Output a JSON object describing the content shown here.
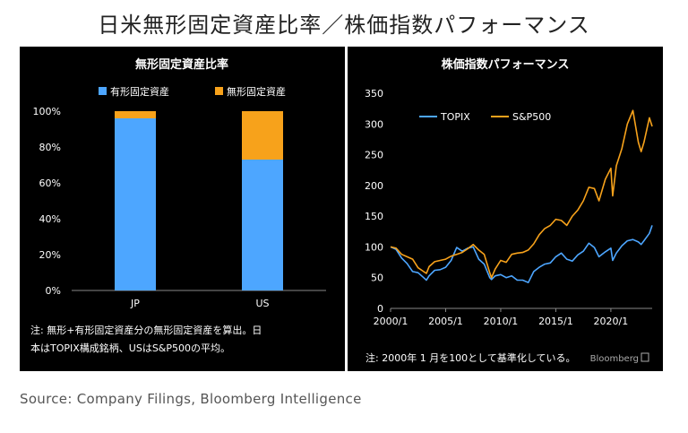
{
  "title": "日米無形固定資産比率／株価指数パフォーマンス",
  "source": "Source: Company Filings, Bloomberg Intelligence",
  "brand": "Bloomberg",
  "colors": {
    "blue": "#4da6ff",
    "orange": "#f7a21b",
    "background": "#000000",
    "text": "#ffffff"
  },
  "chart_data": [
    {
      "type": "bar",
      "stacked": true,
      "title": "無形固定資産比率",
      "categories": [
        "JP",
        "US"
      ],
      "series": [
        {
          "name": "有形固定資産",
          "values": [
            96,
            73
          ]
        },
        {
          "name": "無形固定資産",
          "values": [
            4,
            27
          ]
        }
      ],
      "ylim": [
        0,
        100
      ],
      "yticks": [
        "0%",
        "20%",
        "40%",
        "60%",
        "80%",
        "100%"
      ],
      "legend": "top",
      "note": "注: 無形+有形固定資産分の無形固定資産を算出。日本はTOPIX構成銘柄、USはS&P500の平均。"
    },
    {
      "type": "line",
      "title": "株価指数パフォーマンス",
      "x": [
        "2000/1",
        "2000/7",
        "2001/1",
        "2001/7",
        "2002/1",
        "2002/7",
        "2003/1",
        "2003/4",
        "2003/7",
        "2004/1",
        "2004/7",
        "2005/1",
        "2005/7",
        "2006/1",
        "2006/7",
        "2007/1",
        "2007/7",
        "2008/1",
        "2008/7",
        "2009/1",
        "2009/3",
        "2009/7",
        "2010/1",
        "2010/7",
        "2011/1",
        "2011/7",
        "2012/1",
        "2012/7",
        "2013/1",
        "2013/7",
        "2014/1",
        "2014/7",
        "2015/1",
        "2015/7",
        "2016/1",
        "2016/7",
        "2017/1",
        "2017/7",
        "2018/1",
        "2018/7",
        "2018/12",
        "2019/7",
        "2020/1",
        "2020/3",
        "2020/7",
        "2021/1",
        "2021/7",
        "2022/1",
        "2022/7",
        "2022/10",
        "2023/1",
        "2023/7",
        "2023/10"
      ],
      "series": [
        {
          "name": "TOPIX",
          "values": [
            100,
            96,
            82,
            73,
            60,
            58,
            50,
            46,
            53,
            62,
            63,
            67,
            78,
            99,
            93,
            98,
            100,
            80,
            72,
            50,
            47,
            53,
            55,
            50,
            53,
            46,
            46,
            42,
            60,
            67,
            72,
            74,
            84,
            90,
            80,
            77,
            87,
            93,
            106,
            99,
            84,
            92,
            98,
            78,
            90,
            102,
            110,
            112,
            108,
            104,
            110,
            122,
            135
          ]
        },
        {
          "name": "S&P500",
          "values": [
            100,
            98,
            88,
            84,
            80,
            66,
            60,
            57,
            68,
            76,
            78,
            80,
            85,
            88,
            91,
            97,
            104,
            95,
            88,
            58,
            50,
            64,
            78,
            75,
            88,
            90,
            91,
            95,
            105,
            120,
            130,
            135,
            145,
            143,
            135,
            150,
            160,
            175,
            197,
            195,
            175,
            210,
            228,
            183,
            232,
            260,
            300,
            322,
            270,
            255,
            270,
            310,
            296
          ]
        }
      ],
      "ylim": [
        0,
        350
      ],
      "yticks": [
        "0",
        "50",
        "100",
        "150",
        "200",
        "250",
        "300",
        "350"
      ],
      "xticks": [
        "2000/1",
        "2005/1",
        "2010/1",
        "2015/1",
        "2020/1"
      ],
      "legend": "top-left",
      "note": "注: 2000年 1 月を100として基準化している。"
    }
  ]
}
